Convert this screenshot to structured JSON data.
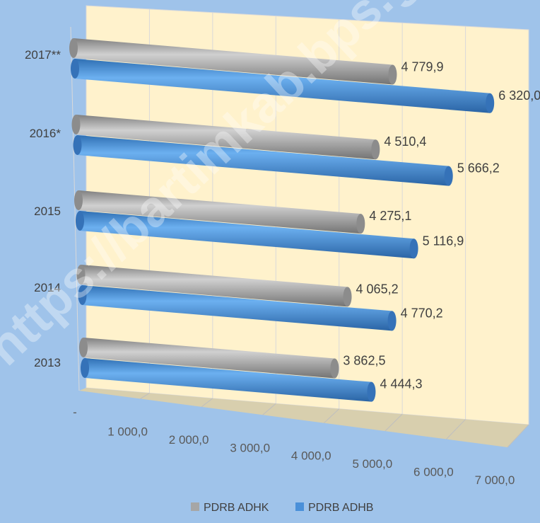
{
  "chart_data": {
    "type": "bar",
    "orientation": "horizontal",
    "three_d": true,
    "categories": [
      "2013",
      "2014",
      "2015",
      "2016*",
      "2017**"
    ],
    "series": [
      {
        "name": "PDRB ADHK",
        "values": [
          3862.5,
          4065.2,
          4275.1,
          4510.4,
          4779.9
        ],
        "labels": [
          "3 862,5",
          "4 065,2",
          "4 275,1",
          "4 510,4",
          "4 779,9"
        ]
      },
      {
        "name": "PDRB ADHB",
        "values": [
          4444.3,
          4770.2,
          5116.9,
          5666.2,
          6320.0
        ],
        "labels": [
          "4 444,3",
          "4 770,2",
          "5 116,9",
          "5 666,2",
          "6 320,0"
        ]
      }
    ],
    "xlim": [
      0,
      7000
    ],
    "xtick_labels": [
      "-",
      "1 000,0",
      "2 000,0",
      "3 000,0",
      "4 000,0",
      "5 000,0",
      "6 000,0",
      "7 000,0"
    ],
    "xtick_values": [
      0,
      1000,
      2000,
      3000,
      4000,
      5000,
      6000,
      7000
    ],
    "grid": true,
    "legend_position": "bottom",
    "colors": {
      "PDRB ADHK": "#a6a6a6",
      "PDRB ADHB": "#4a90d9",
      "background": "#9fc3ea",
      "wall": "#fff2cc",
      "floor": "#d8cfae"
    }
  },
  "watermark": "https://bartimkab.bps.go.id"
}
